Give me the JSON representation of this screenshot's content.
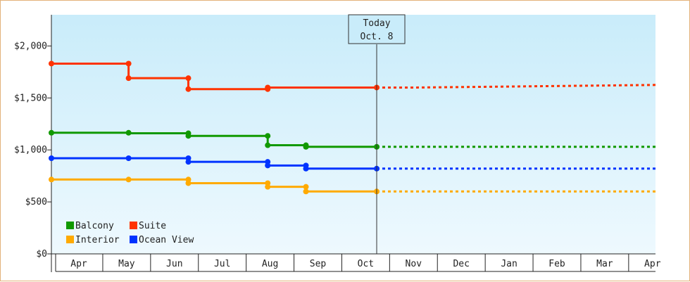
{
  "chart_data": {
    "type": "line",
    "title": "",
    "xlabel": "",
    "ylabel": "",
    "ylim": [
      0,
      2300
    ],
    "y_ticks": [
      {
        "value": 0,
        "label": "$0"
      },
      {
        "value": 500,
        "label": "$500"
      },
      {
        "value": 1000,
        "label": "$1,000"
      },
      {
        "value": 1500,
        "label": "$1,500"
      },
      {
        "value": 2000,
        "label": "$2,000"
      }
    ],
    "x_months": [
      "Apr",
      "May",
      "Jun",
      "Jul",
      "Aug",
      "Sep",
      "Oct",
      "Nov",
      "Dec",
      "Jan",
      "Feb",
      "Mar",
      "Apr"
    ],
    "today": {
      "line1": "Today",
      "line2": "Oct. 8",
      "x": 6.23
    },
    "grid": false,
    "legend_position": "bottom-left",
    "series": [
      {
        "name": "Suite",
        "color": "#ff3300",
        "actual": [
          [
            -0.6,
            1830
          ],
          [
            1.04,
            1830
          ],
          [
            1.04,
            1690
          ],
          [
            2.29,
            1690
          ],
          [
            2.29,
            1585
          ],
          [
            3.95,
            1585
          ],
          [
            3.95,
            1600
          ],
          [
            6.23,
            1600
          ]
        ],
        "projected": [
          [
            6.23,
            1600
          ],
          [
            7.0,
            1600
          ],
          [
            9.1,
            1610
          ],
          [
            12.5,
            1625
          ]
        ],
        "markers": [
          [
            -0.6,
            1830
          ],
          [
            1.04,
            1830
          ],
          [
            1.04,
            1690
          ],
          [
            2.29,
            1690
          ],
          [
            2.29,
            1585
          ],
          [
            3.95,
            1585
          ],
          [
            3.95,
            1600
          ],
          [
            6.23,
            1600
          ]
        ]
      },
      {
        "name": "Balcony",
        "color": "#119900",
        "actual": [
          [
            -0.6,
            1165
          ],
          [
            1.04,
            1165
          ],
          [
            1.04,
            1160
          ],
          [
            2.29,
            1160
          ],
          [
            2.29,
            1135
          ],
          [
            3.95,
            1135
          ],
          [
            3.95,
            1045
          ],
          [
            4.75,
            1045
          ],
          [
            4.75,
            1030
          ],
          [
            6.23,
            1030
          ]
        ],
        "projected": [
          [
            6.23,
            1030
          ],
          [
            12.5,
            1030
          ]
        ],
        "markers": [
          [
            -0.6,
            1165
          ],
          [
            1.04,
            1165
          ],
          [
            2.29,
            1160
          ],
          [
            2.29,
            1135
          ],
          [
            3.95,
            1135
          ],
          [
            3.95,
            1045
          ],
          [
            4.75,
            1045
          ],
          [
            4.75,
            1030
          ],
          [
            6.23,
            1030
          ]
        ]
      },
      {
        "name": "Ocean View",
        "color": "#0033ff",
        "actual": [
          [
            -0.6,
            920
          ],
          [
            1.04,
            920
          ],
          [
            2.29,
            920
          ],
          [
            2.29,
            885
          ],
          [
            3.95,
            885
          ],
          [
            3.95,
            850
          ],
          [
            4.75,
            850
          ],
          [
            4.75,
            820
          ],
          [
            6.23,
            820
          ]
        ],
        "projected": [
          [
            6.23,
            820
          ],
          [
            12.5,
            820
          ]
        ],
        "markers": [
          [
            -0.6,
            920
          ],
          [
            1.04,
            920
          ],
          [
            2.29,
            920
          ],
          [
            2.29,
            885
          ],
          [
            3.95,
            885
          ],
          [
            3.95,
            850
          ],
          [
            4.75,
            850
          ],
          [
            4.75,
            820
          ],
          [
            6.23,
            820
          ]
        ]
      },
      {
        "name": "Interior",
        "color": "#ffaa00",
        "actual": [
          [
            -0.6,
            715
          ],
          [
            1.04,
            715
          ],
          [
            2.29,
            715
          ],
          [
            2.29,
            680
          ],
          [
            3.95,
            680
          ],
          [
            3.95,
            645
          ],
          [
            4.75,
            645
          ],
          [
            4.75,
            600
          ],
          [
            6.23,
            600
          ]
        ],
        "projected": [
          [
            6.23,
            600
          ],
          [
            12.5,
            600
          ]
        ],
        "markers": [
          [
            -0.6,
            715
          ],
          [
            1.04,
            715
          ],
          [
            2.29,
            715
          ],
          [
            2.29,
            680
          ],
          [
            3.95,
            680
          ],
          [
            3.95,
            645
          ],
          [
            4.75,
            645
          ],
          [
            4.75,
            600
          ],
          [
            6.23,
            600
          ]
        ]
      }
    ],
    "legend": [
      {
        "name": "Balcony",
        "color": "#119900"
      },
      {
        "name": "Suite",
        "color": "#ff3300"
      },
      {
        "name": "Interior",
        "color": "#ffaa00"
      },
      {
        "name": "Ocean View",
        "color": "#0033ff"
      }
    ]
  }
}
